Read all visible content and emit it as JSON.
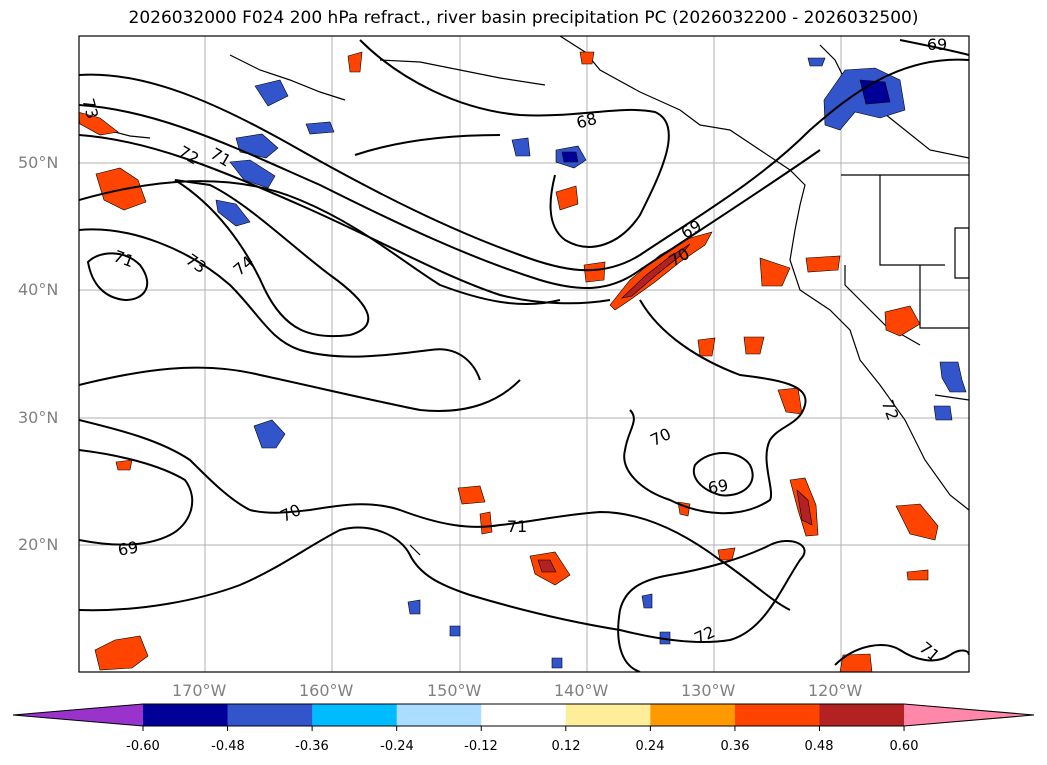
{
  "title": "2026032000 F024 200 hPa refract., river basin precipitation PC (2026032200 - 2026032500)",
  "lat_labels": [
    "50°N",
    "40°N",
    "30°N",
    "20°N"
  ],
  "lon_labels": [
    "170°W",
    "160°W",
    "150°W",
    "140°W",
    "130°W",
    "120°W"
  ],
  "contour_labels": [
    "69",
    "73",
    "68",
    "72",
    "71",
    "71",
    "73",
    "74",
    "69",
    "70",
    "70",
    "69",
    "70",
    "71",
    "69",
    "72",
    "72",
    "71"
  ],
  "colorbar": {
    "ticks": [
      "-0.60",
      "-0.48",
      "-0.36",
      "-0.24",
      "-0.12",
      "0.12",
      "0.24",
      "0.36",
      "0.48",
      "0.60"
    ],
    "colors": [
      "#9933cc",
      "#000099",
      "#3355cc",
      "#00bbff",
      "#aaddff",
      "#ffffff",
      "#ffee99",
      "#ff9900",
      "#ff4400",
      "#b22222",
      "#ff88aa"
    ]
  }
}
